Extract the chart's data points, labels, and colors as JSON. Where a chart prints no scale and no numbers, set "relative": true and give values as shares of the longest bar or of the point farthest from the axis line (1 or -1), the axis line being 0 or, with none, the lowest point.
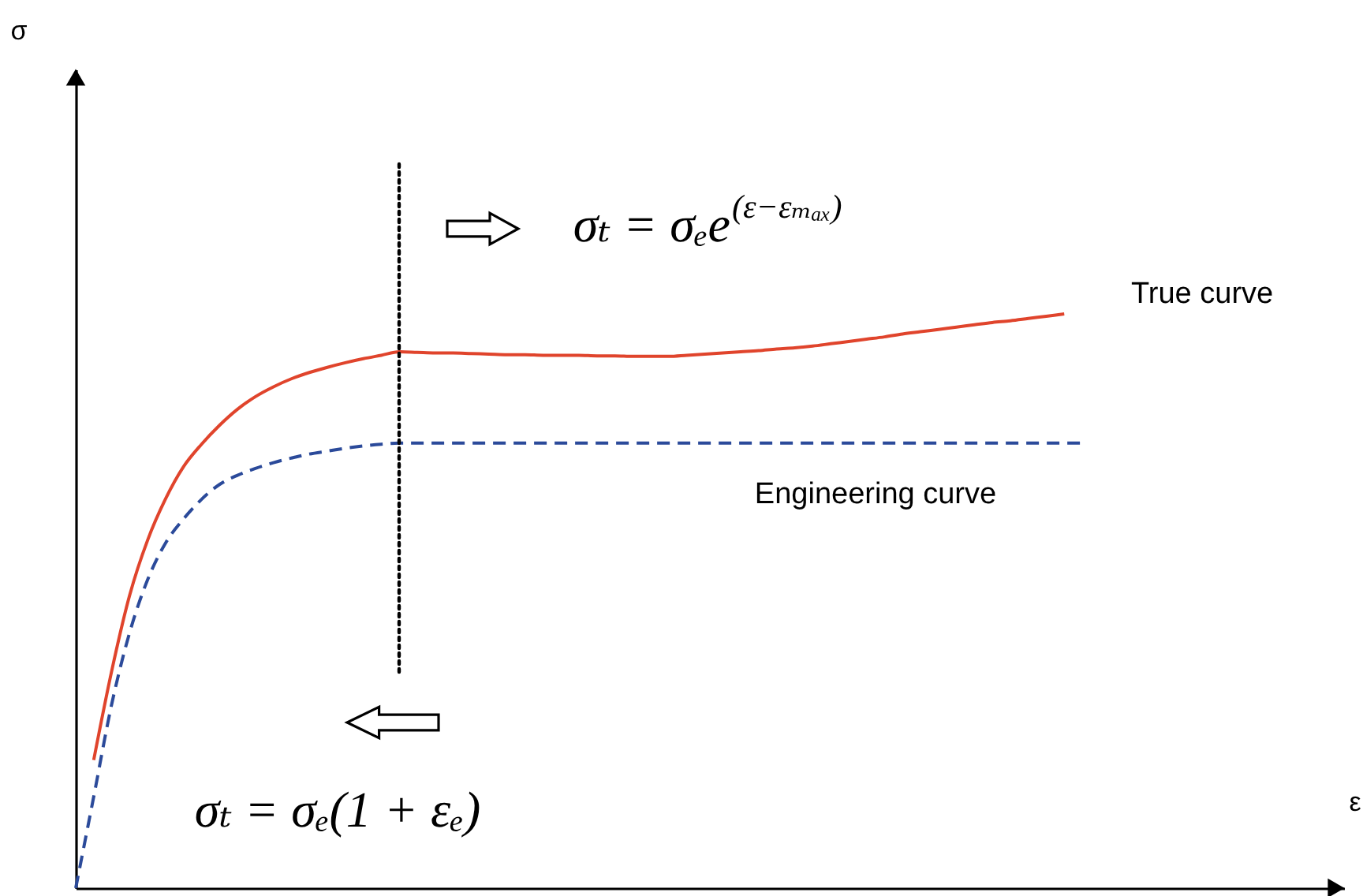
{
  "chart_data": {
    "type": "line",
    "relative": true,
    "tick_labels": false,
    "categories": [
      null,
      null,
      null,
      null,
      null,
      null,
      null,
      null,
      null,
      null,
      null,
      null,
      null,
      null,
      null,
      null,
      null,
      null,
      null,
      null,
      null,
      null,
      null,
      null,
      null,
      null,
      null,
      null,
      null,
      null,
      null,
      null,
      null,
      null,
      null,
      null,
      null,
      null,
      null,
      null,
      null,
      null,
      null,
      null,
      null,
      null,
      null,
      null,
      null,
      null,
      null,
      null,
      null,
      null,
      null,
      null,
      null
    ],
    "series": [
      {
        "name": "True curve",
        "color": "#e0442c",
        "line_style": "solid",
        "values": [
          null,
          0.223,
          0.378,
          0.51,
          0.606,
          0.678,
          0.734,
          0.773,
          0.806,
          0.834,
          0.856,
          0.873,
          0.887,
          0.898,
          0.907,
          0.915,
          0.922,
          0.928,
          0.934,
          0.933,
          0.932,
          0.932,
          0.931,
          0.93,
          0.929,
          0.929,
          0.928,
          0.928,
          0.928,
          0.927,
          0.927,
          0.926,
          0.926,
          0.926,
          0.928,
          0.93,
          0.932,
          0.934,
          0.936,
          0.939,
          0.941,
          0.944,
          0.948,
          0.952,
          0.956,
          0.96,
          0.965,
          0.969,
          0.973,
          0.977,
          0.981,
          0.985,
          0.988,
          0.992,
          0.996,
          1.0,
          null
        ]
      },
      {
        "name": "Engineering curve",
        "color": "#2b4a9a",
        "line_style": "dashed",
        "values": [
          0,
          0.159,
          0.32,
          0.445,
          0.537,
          0.601,
          0.643,
          0.677,
          0.703,
          0.719,
          0.731,
          0.741,
          0.749,
          0.756,
          0.761,
          0.766,
          0.77,
          0.773,
          0.775,
          0.775,
          0.775,
          0.775,
          0.775,
          0.775,
          0.775,
          0.775,
          0.775,
          0.775,
          0.775,
          0.775,
          0.775,
          0.775,
          0.775,
          0.775,
          0.775,
          0.775,
          0.775,
          0.775,
          0.775,
          0.775,
          0.775,
          0.775,
          0.775,
          0.775,
          0.775,
          0.775,
          0.775,
          0.775,
          0.775,
          0.775,
          0.775,
          0.775,
          0.775,
          0.775,
          0.775,
          0.775,
          0.775
        ]
      }
    ],
    "annotations": [
      "σₜ = σₑe$^{(ε−εₘₐₓ)}$",
      "σₜ = σₑ(1 + εₑ)",
      "σ",
      "ε"
    ]
  }
}
